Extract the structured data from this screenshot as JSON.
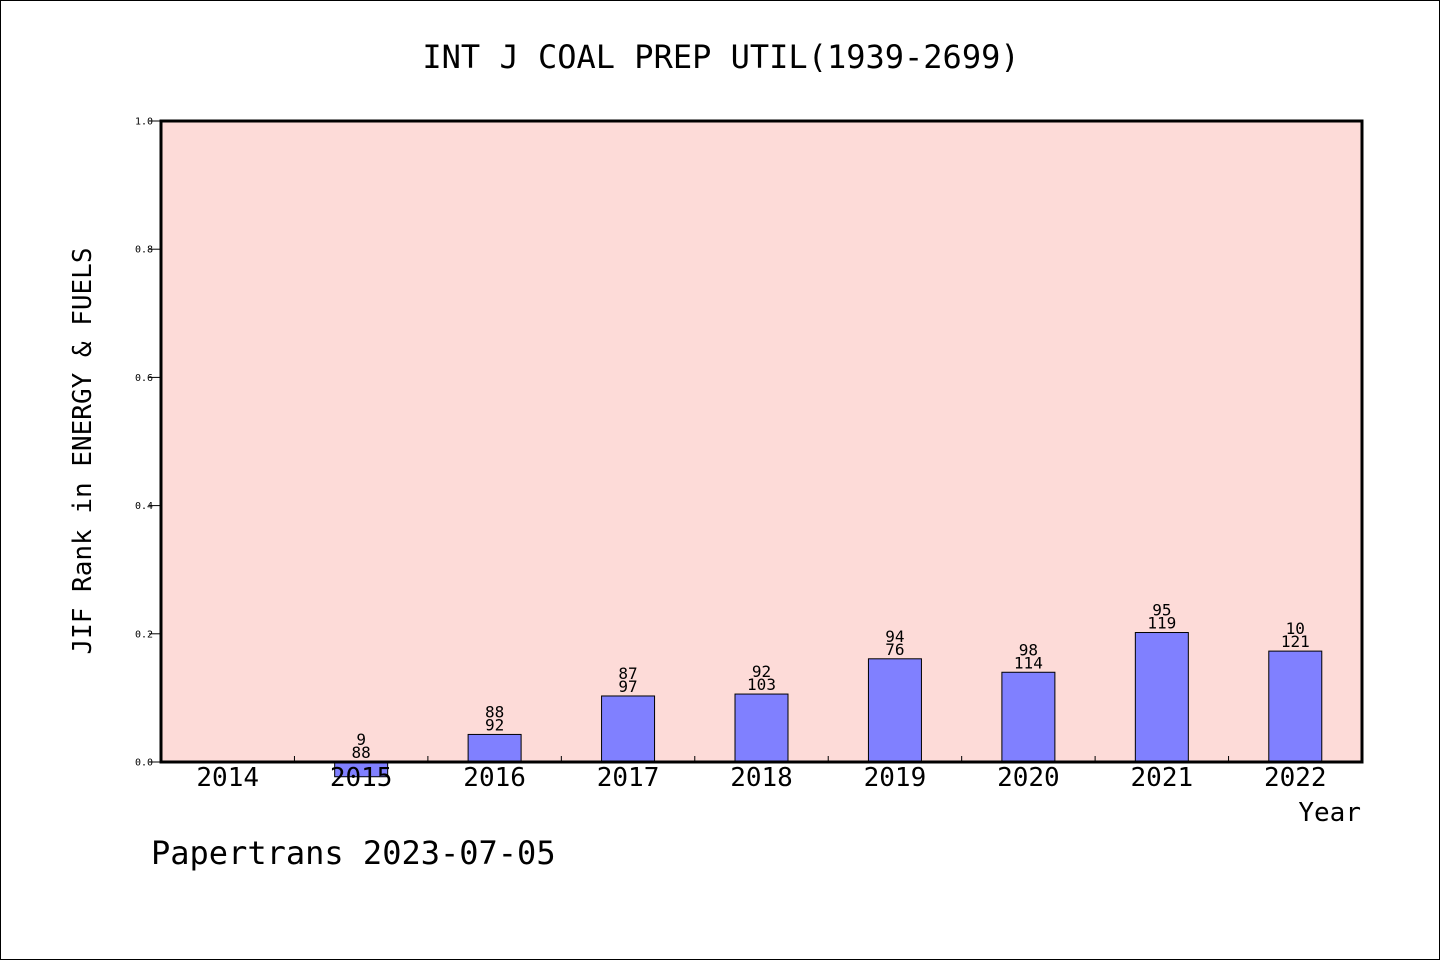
{
  "chart_data": {
    "type": "bar",
    "title": "INT J COAL PREP UTIL(1939-2699)",
    "ylabel": "JIF Rank in ENERGY & FUELS",
    "xlabel": "Year",
    "ylim": [
      0,
      1.0
    ],
    "yticks": [
      "0.0",
      "0.2",
      "0.4",
      "0.6",
      "0.8",
      "1.0"
    ],
    "ytick_values": [
      0,
      0.2,
      0.4,
      0.6,
      0.8,
      1.0
    ],
    "categories": [
      "2014",
      "2015",
      "2016",
      "2017",
      "2018",
      "2019",
      "2020",
      "2021",
      "2022"
    ],
    "values": [
      null,
      -0.023,
      0.043,
      0.103,
      0.106,
      0.161,
      0.14,
      0.202,
      0.173
    ],
    "label_top": [
      "",
      "9",
      "88",
      "87",
      "92",
      "94",
      "98",
      "95",
      "10"
    ],
    "label_bottom": [
      "",
      "88",
      "92",
      "97",
      "103",
      "76",
      "114",
      "119",
      "121"
    ],
    "grid": false,
    "colors": {
      "plot_background": "#fddbd8",
      "bar_fill": "#8080ff",
      "bar_edge": "#000000",
      "axis": "#000000"
    }
  },
  "footer": {
    "text": "Papertrans 2023-07-05"
  }
}
